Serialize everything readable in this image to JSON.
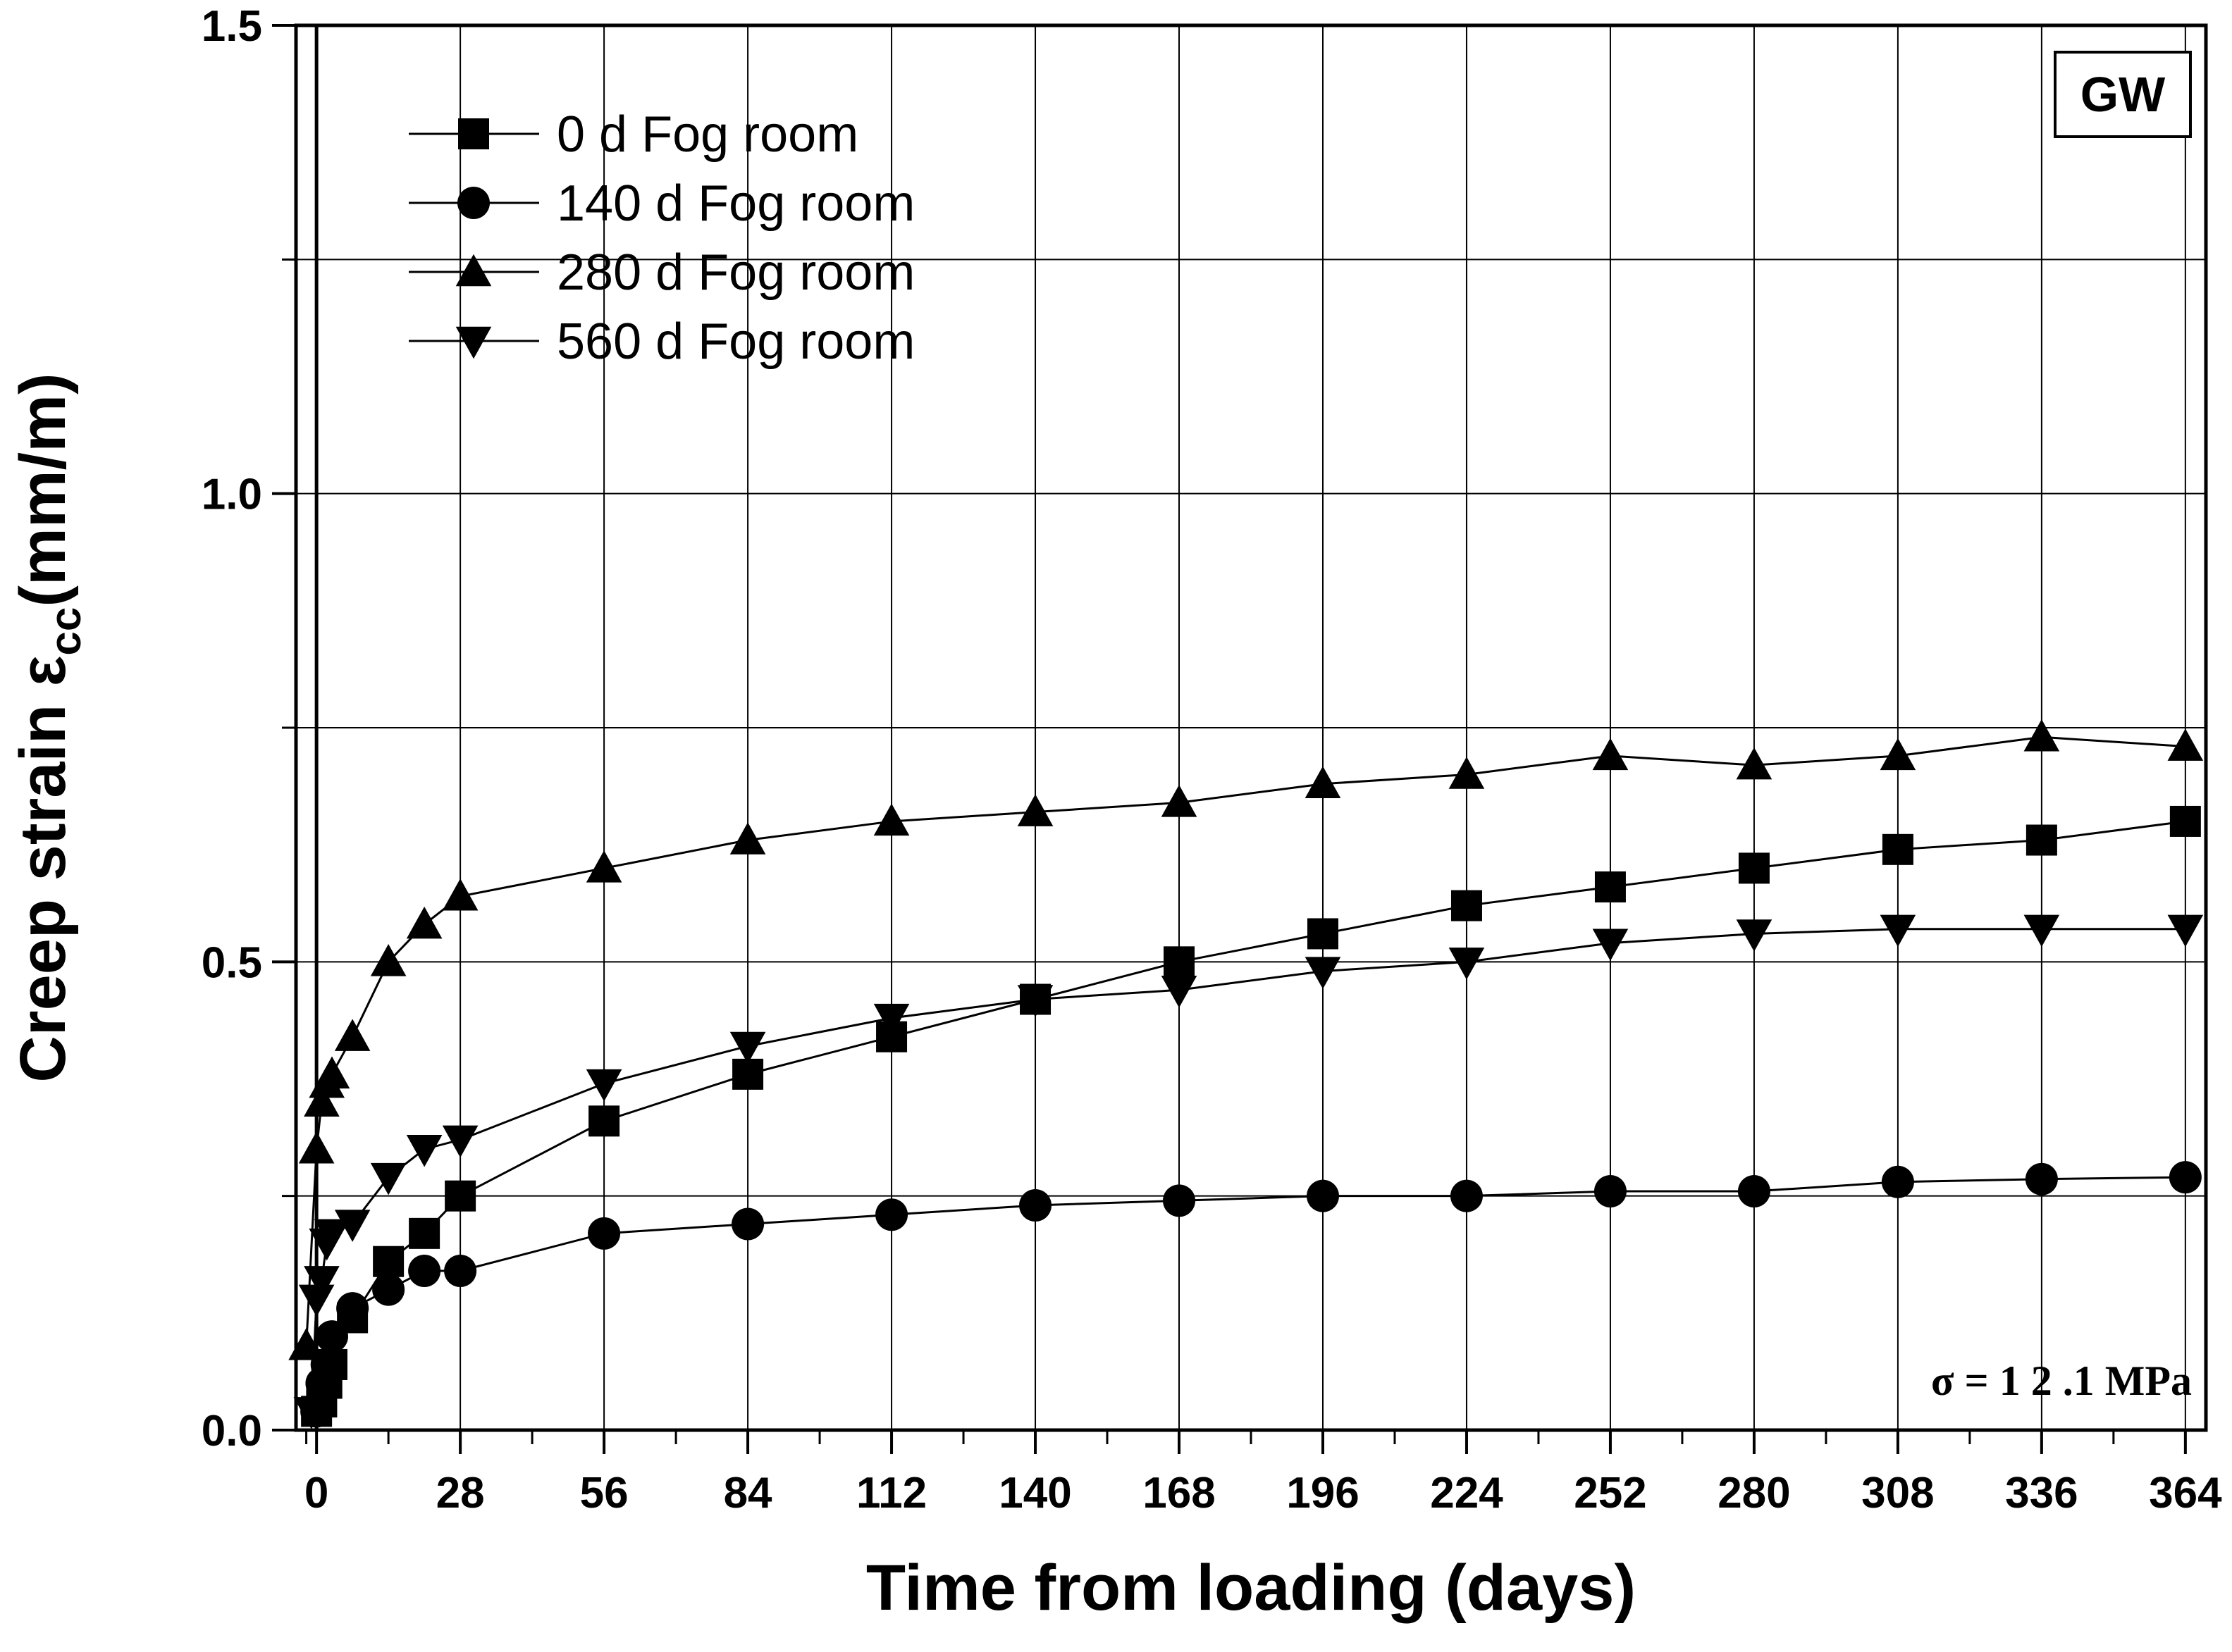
{
  "chart_data": {
    "type": "line",
    "xlabel": "Time from loading (days)",
    "ylabel_main": "Creep strain ε",
    "ylabel_sub": "cc",
    "ylabel_unit": "(mm/m)",
    "xlim": [
      -4,
      368
    ],
    "ylim": [
      0,
      1.5
    ],
    "xticks": [
      0,
      28,
      56,
      84,
      112,
      140,
      168,
      196,
      224,
      252,
      280,
      308,
      336,
      364
    ],
    "yticks": [
      0.0,
      0.5,
      1.0,
      1.5
    ],
    "ytick_labels": [
      "0.0",
      "0.5",
      "1.0",
      "1.5"
    ],
    "grid": true,
    "legend_position": "top-left",
    "badge": "GW",
    "annotation": "σ = 1 2 .1  MPa",
    "series": [
      {
        "name": "0 d Fog room",
        "marker": "square",
        "x": [
          0,
          1,
          2,
          3,
          7,
          14,
          21,
          28,
          56,
          84,
          112,
          140,
          168,
          196,
          224,
          252,
          280,
          308,
          336,
          364
        ],
        "y": [
          0.02,
          0.03,
          0.05,
          0.07,
          0.12,
          0.18,
          0.21,
          0.25,
          0.33,
          0.38,
          0.42,
          0.46,
          0.5,
          0.53,
          0.56,
          0.58,
          0.6,
          0.62,
          0.63,
          0.65
        ]
      },
      {
        "name": "140 d Fog room",
        "marker": "circle",
        "x": [
          0,
          1,
          2,
          3,
          7,
          14,
          21,
          28,
          56,
          84,
          112,
          140,
          168,
          196,
          224,
          252,
          280,
          308,
          336,
          364
        ],
        "y": [
          0.02,
          0.05,
          0.07,
          0.1,
          0.13,
          0.15,
          0.17,
          0.17,
          0.21,
          0.22,
          0.23,
          0.24,
          0.245,
          0.25,
          0.25,
          0.255,
          0.255,
          0.265,
          0.268,
          0.27
        ]
      },
      {
        "name": "280 d Fog room",
        "marker": "triangle-up",
        "x": [
          -2,
          0,
          1,
          2,
          3,
          7,
          14,
          21,
          28,
          56,
          84,
          112,
          140,
          168,
          196,
          224,
          252,
          280,
          308,
          336,
          364
        ],
        "y": [
          0.09,
          0.3,
          0.35,
          0.37,
          0.38,
          0.42,
          0.5,
          0.54,
          0.57,
          0.6,
          0.63,
          0.65,
          0.66,
          0.67,
          0.69,
          0.7,
          0.72,
          0.71,
          0.72,
          0.74,
          0.73
        ]
      },
      {
        "name": "560 d Fog room",
        "marker": "triangle-down",
        "x": [
          -1,
          0,
          1,
          2,
          3,
          7,
          14,
          21,
          28,
          56,
          84,
          112,
          140,
          168,
          196,
          224,
          252,
          280,
          308,
          336,
          364
        ],
        "y": [
          0.02,
          0.14,
          0.16,
          0.2,
          0.21,
          0.22,
          0.27,
          0.3,
          0.31,
          0.37,
          0.41,
          0.44,
          0.46,
          0.47,
          0.49,
          0.5,
          0.52,
          0.53,
          0.535,
          0.535,
          0.535
        ]
      }
    ]
  }
}
